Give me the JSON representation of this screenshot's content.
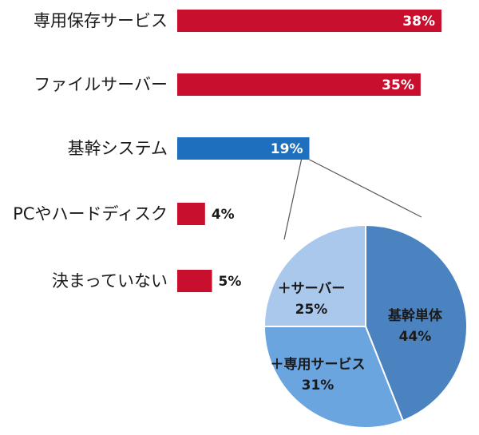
{
  "chart_data": [
    {
      "type": "bar",
      "orientation": "horizontal",
      "categories": [
        "専用保存サービス",
        "ファイルサーバー",
        "基幹システム",
        "PCやハードディスク",
        "決まっていない"
      ],
      "values": [
        38,
        35,
        19,
        4,
        5
      ],
      "value_labels": [
        "38%",
        "35%",
        "19%",
        "4%",
        "5%"
      ],
      "highlight_index": 2,
      "xlim": [
        0,
        38
      ],
      "grid": false,
      "colors": {
        "bar": "#c8102e",
        "highlight": "#1f6fbf"
      }
    },
    {
      "type": "pie",
      "labels": [
        "基幹単体",
        "＋専用サービス",
        "＋サーバー"
      ],
      "values": [
        44,
        31,
        25
      ],
      "value_labels": [
        "44%",
        "31%",
        "25%"
      ],
      "colors": [
        "#4a83c0",
        "#6aa5e0",
        "#a9c8ec"
      ]
    }
  ]
}
